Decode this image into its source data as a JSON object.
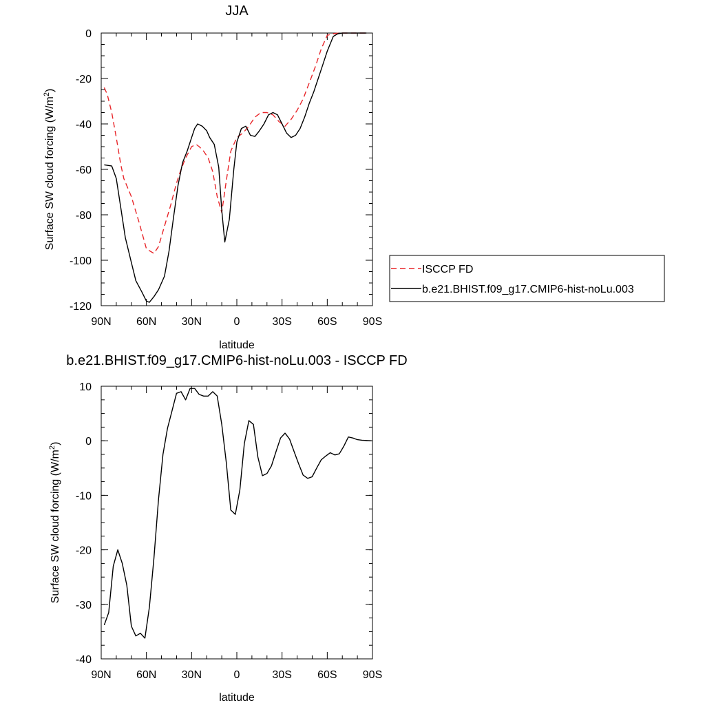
{
  "colors": {
    "obs": "#e8262a",
    "model": "#000000",
    "frame": "#000000"
  },
  "chart_data": [
    {
      "type": "line",
      "title": "JJA",
      "xlabel": "latitude",
      "ylabel": "Surface SW cloud forcing (W/m",
      "ylabel_sup": "2",
      "ylabel_close": ")",
      "xlim": [
        90,
        -90
      ],
      "ylim": [
        -120,
        0
      ],
      "xticks": [
        90,
        60,
        30,
        0,
        -30,
        -60,
        -90
      ],
      "xtick_labels": [
        "90N",
        "60N",
        "30N",
        "0",
        "30S",
        "60S",
        "90S"
      ],
      "yticks": [
        0,
        -20,
        -40,
        -60,
        -80,
        -100,
        -120
      ],
      "ytick_labels": [
        "0",
        "-20",
        "-40",
        "-60",
        "-80",
        "-100",
        "-120"
      ],
      "legend_position": "right",
      "series": [
        {
          "name": "ISCCP FD",
          "style": "dashed",
          "x": [
            88,
            86,
            83,
            80,
            77,
            75,
            70,
            65,
            60,
            55,
            52,
            48,
            44,
            40,
            37,
            34,
            30,
            27,
            25,
            22,
            19,
            16,
            13,
            10,
            7,
            4,
            0,
            -4,
            -8,
            -12,
            -16,
            -20,
            -24,
            -28,
            -32,
            -36,
            -40,
            -44,
            -48,
            -52,
            -56,
            -60,
            -64,
            -68,
            -72,
            -76,
            -80,
            -86
          ],
          "y": [
            -24,
            -27,
            -35,
            -46,
            -58,
            -64,
            -72,
            -83,
            -95,
            -97,
            -94,
            -85,
            -76,
            -66,
            -60,
            -55,
            -50,
            -49,
            -50,
            -52,
            -55,
            -61,
            -72,
            -79,
            -65,
            -52,
            -46,
            -44,
            -41,
            -37,
            -35,
            -35,
            -36,
            -39,
            -41,
            -38,
            -34,
            -29,
            -22,
            -15,
            -7,
            -1,
            -0.3,
            0,
            0,
            0,
            0,
            0
          ]
        },
        {
          "name": "b.e21.BHIST.f09_g17.CMIP6-hist-noLu.003",
          "style": "solid",
          "x": [
            88,
            83,
            80,
            77,
            74,
            70,
            67,
            63,
            60,
            58,
            55,
            52,
            48,
            45,
            42,
            39,
            36,
            33,
            30,
            28,
            26,
            23,
            20,
            18,
            15,
            12,
            10,
            8,
            5,
            2,
            0,
            -3,
            -6,
            -9,
            -12,
            -15,
            -18,
            -21,
            -24,
            -27,
            -30,
            -33,
            -36,
            -39,
            -42,
            -45,
            -48,
            -51,
            -54,
            -57,
            -60,
            -64,
            -67,
            -70,
            -75,
            -80,
            -86
          ],
          "y": [
            -58,
            -58.5,
            -64,
            -77,
            -90,
            -101,
            -109,
            -114,
            -118,
            -118.5,
            -116,
            -113,
            -107,
            -96,
            -81,
            -67,
            -57,
            -52,
            -46,
            -42,
            -40,
            -41,
            -43,
            -46,
            -49,
            -59,
            -78,
            -92,
            -82,
            -60,
            -48,
            -42,
            -41,
            -45,
            -45.5,
            -43,
            -40,
            -36,
            -35,
            -36,
            -40,
            -44,
            -46,
            -45,
            -42,
            -37,
            -31,
            -26,
            -20,
            -14,
            -8,
            -1.5,
            -0.3,
            0,
            0,
            0,
            0
          ]
        }
      ]
    },
    {
      "type": "line",
      "title": "b.e21.BHIST.f09_g17.CMIP6-hist-noLu.003 - ISCCP FD",
      "xlabel": "latitude",
      "ylabel": "Surface SW cloud forcing (W/m",
      "ylabel_sup": "2",
      "ylabel_close": ")",
      "xlim": [
        90,
        -90
      ],
      "ylim": [
        -40,
        10
      ],
      "xticks": [
        90,
        60,
        30,
        0,
        -30,
        -60,
        -90
      ],
      "xtick_labels": [
        "90N",
        "60N",
        "30N",
        "0",
        "30S",
        "60S",
        "90S"
      ],
      "yticks": [
        10,
        0,
        -10,
        -20,
        -30,
        -40
      ],
      "ytick_labels": [
        "10",
        "0",
        "-10",
        "-20",
        "-30",
        "-40"
      ],
      "series": [
        {
          "style": "solid",
          "x": [
            88,
            85,
            82,
            79,
            76,
            73,
            70,
            67,
            64,
            61,
            58,
            55,
            52,
            49,
            46,
            43,
            40,
            37,
            34,
            31,
            28,
            25,
            22,
            19,
            16,
            13,
            10,
            7,
            4,
            1,
            -2,
            -5,
            -8,
            -11,
            -14,
            -17,
            -20,
            -23,
            -26,
            -29,
            -32,
            -35,
            -38,
            -41,
            -44,
            -47,
            -50,
            -53,
            -56,
            -59,
            -62,
            -65,
            -68,
            -71,
            -74,
            -77,
            -80,
            -83,
            -86,
            -89
          ],
          "y": [
            -33.8,
            -31.5,
            -23,
            -20,
            -22.5,
            -26.5,
            -34,
            -35.8,
            -35.3,
            -36.2,
            -30.5,
            -21.5,
            -10.8,
            -2.5,
            2.3,
            5.5,
            8.7,
            9,
            7.5,
            9.6,
            9.6,
            8.5,
            8.2,
            8.2,
            9,
            8.2,
            3,
            -4,
            -12.7,
            -13.5,
            -9,
            -0.5,
            3.7,
            3,
            -3,
            -6.4,
            -6,
            -4.6,
            -2,
            0.5,
            1.4,
            0.3,
            -2,
            -4.2,
            -6.3,
            -6.9,
            -6.6,
            -5,
            -3.5,
            -2.8,
            -2.2,
            -2.6,
            -2.4,
            -1,
            0.7,
            0.5,
            0.2,
            0.1,
            0.05,
            0
          ]
        }
      ]
    }
  ]
}
